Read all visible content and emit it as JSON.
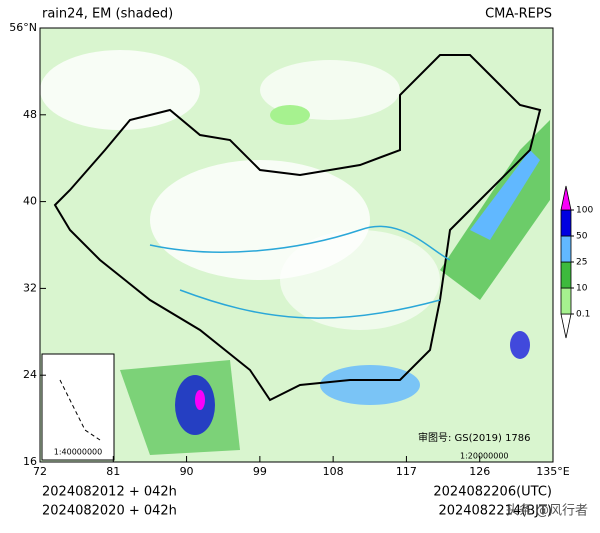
{
  "header": {
    "title": "rain24, EM (shaded)",
    "source": "CMA-REPS"
  },
  "map": {
    "lat_ticks": [
      {
        "value": 56,
        "label": "56°N"
      },
      48,
      40,
      32,
      24,
      16
    ],
    "lon_ticks": [
      72,
      81,
      90,
      99,
      108,
      117,
      126,
      {
        "value": 135,
        "label": "135°E"
      }
    ],
    "latlim": [
      16,
      56
    ],
    "lonlim": [
      72,
      135
    ],
    "inset_scale": "1:40000000",
    "approval": "审图号: GS(2019) 1786",
    "scale": "1:20000000"
  },
  "colorbar": {
    "levels": [
      0.1,
      10,
      25,
      50,
      100
    ],
    "colors": [
      "#ffffff",
      "#a6f28f",
      "#3dba3d",
      "#61b8ff",
      "#0000e1",
      "#fa00fa"
    ]
  },
  "footer": {
    "init_utc": "2024082012 + 042h",
    "init_bjt": "2024082020 + 042h",
    "valid_utc": "2024082206(UTC)",
    "valid_bjt": "2024082214(BJT)"
  },
  "watermark": "头条 @风行者"
}
